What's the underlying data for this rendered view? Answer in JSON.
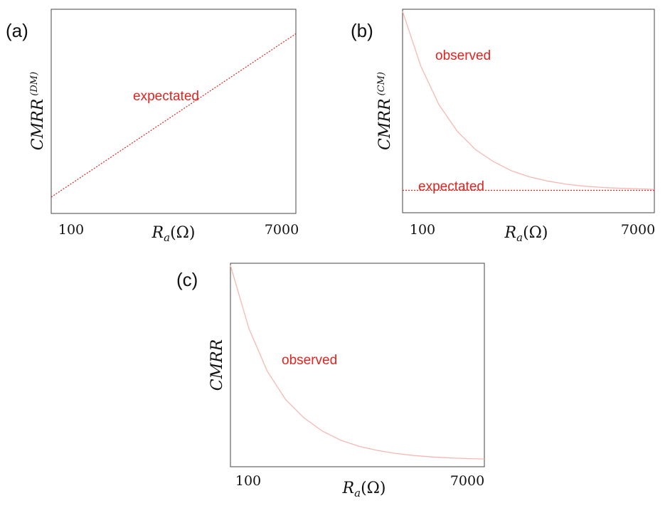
{
  "colors": {
    "expected": "#e0241f",
    "observed": "#f6b8b2",
    "frame": "#444444"
  },
  "chart_data": [
    {
      "panel": "(a)",
      "type": "line",
      "xlabel": "R_a(Ω)",
      "ylabel": "CMRR",
      "ylabel_sup": "(DM)",
      "x_ticks": [
        "100",
        "7000"
      ],
      "xlim": [
        100,
        7000
      ],
      "ylim": [
        0,
        1
      ],
      "grid": false,
      "series": [
        {
          "name": "expectated",
          "style": "dotted",
          "color": "#e0241f",
          "x": [
            100,
            7000
          ],
          "y": [
            0.08,
            0.88
          ]
        }
      ]
    },
    {
      "panel": "(b)",
      "type": "line",
      "xlabel": "R_a(Ω)",
      "ylabel": "CMRR",
      "ylabel_sup": "(CM)",
      "x_ticks": [
        "100",
        "7000"
      ],
      "xlim": [
        100,
        7000
      ],
      "ylim": [
        0,
        1
      ],
      "grid": false,
      "series": [
        {
          "name": "observed",
          "style": "solid",
          "color": "#f6b8b2",
          "x": [
            100,
            600,
            1100,
            1600,
            2100,
            2600,
            3100,
            3600,
            4100,
            4600,
            5100,
            5600,
            6100,
            6600,
            7000
          ],
          "y": [
            0.99,
            0.72,
            0.53,
            0.4,
            0.31,
            0.25,
            0.205,
            0.175,
            0.155,
            0.14,
            0.13,
            0.124,
            0.12,
            0.117,
            0.115
          ]
        },
        {
          "name": "expectated",
          "style": "dotted",
          "color": "#e0241f",
          "x": [
            100,
            7000
          ],
          "y": [
            0.11,
            0.11
          ]
        }
      ]
    },
    {
      "panel": "(c)",
      "type": "line",
      "xlabel": "R_a(Ω)",
      "ylabel": "CMRR",
      "ylabel_sup": "",
      "x_ticks": [
        "100",
        "7000"
      ],
      "xlim": [
        100,
        7000
      ],
      "ylim": [
        0,
        1
      ],
      "grid": false,
      "series": [
        {
          "name": "observed",
          "style": "solid",
          "color": "#f6b8b2",
          "x": [
            100,
            600,
            1100,
            1600,
            2100,
            2600,
            3100,
            3600,
            4100,
            4600,
            5100,
            5600,
            6100,
            6600,
            7000
          ],
          "y": [
            0.99,
            0.68,
            0.47,
            0.33,
            0.24,
            0.175,
            0.13,
            0.1,
            0.08,
            0.065,
            0.055,
            0.048,
            0.043,
            0.04,
            0.038
          ]
        }
      ]
    }
  ]
}
